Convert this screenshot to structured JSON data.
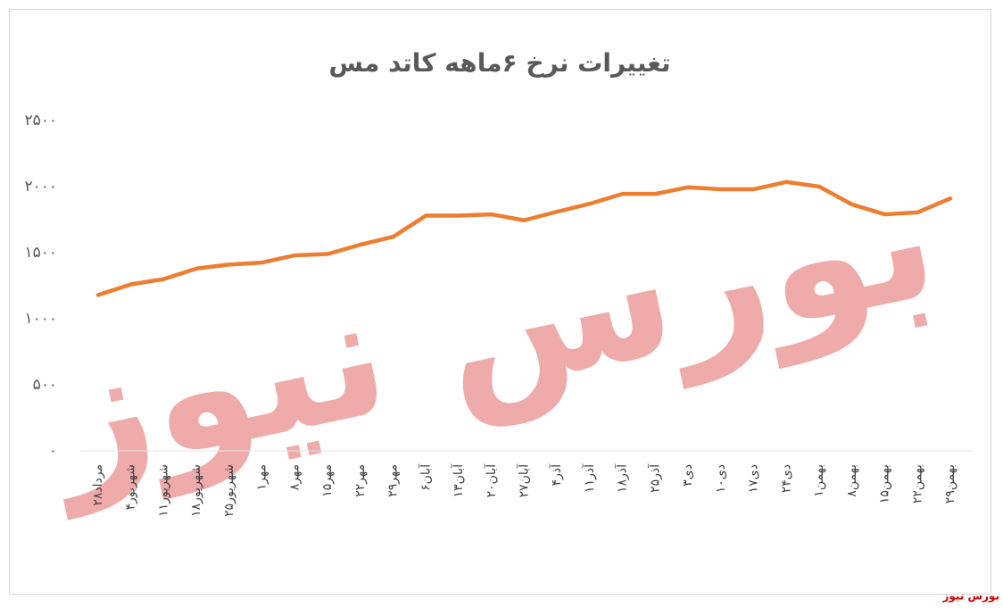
{
  "chart_data": {
    "type": "line",
    "title": "تغییرات نرخ ۶ماهه کاتد مس",
    "categories": [
      "۲۸مرداد",
      "۴شهریور",
      "۱۱شهریور",
      "۱۸شهریور",
      "۲۵شهریور",
      "۱مهر",
      "۸مهر",
      "۱۵مهر",
      "۲۲مهر",
      "۲۹مهر",
      "۶آبان",
      "۱۳آبان",
      "۲۰آبان",
      "۲۷آبان",
      "۴آذر",
      "۱۱آذر",
      "۱۸آذر",
      "۲۵آذر",
      "۳دی",
      "۱۰دی",
      "۱۷دی",
      "۲۴دی",
      "۱بهمن",
      "۸بهمن",
      "۱۵بهمن",
      "۲۲بهمن",
      "۲۹بهمن"
    ],
    "series": [
      {
        "name": "کاتد مس",
        "color": "#ed7d31",
        "values": [
          1180,
          1260,
          1300,
          1380,
          1410,
          1425,
          1480,
          1490,
          1560,
          1620,
          1780,
          1780,
          1790,
          1745,
          1810,
          1870,
          1945,
          1945,
          1995,
          1980,
          1980,
          2035,
          2000,
          1865,
          1790,
          1805,
          1910
        ]
      }
    ],
    "ylim": [
      0,
      2500
    ],
    "yticks": [
      {
        "value": 0,
        "label": "۰"
      },
      {
        "value": 500,
        "label": "۵۰۰"
      },
      {
        "value": 1000,
        "label": "۱۰۰۰"
      },
      {
        "value": 1500,
        "label": "۱۵۰۰"
      },
      {
        "value": 2000,
        "label": "۲۰۰۰"
      },
      {
        "value": 2500,
        "label": "۲۵۰۰"
      }
    ],
    "grid": false,
    "watermark": "بورس نیوز",
    "source": "بورس نیوز"
  }
}
